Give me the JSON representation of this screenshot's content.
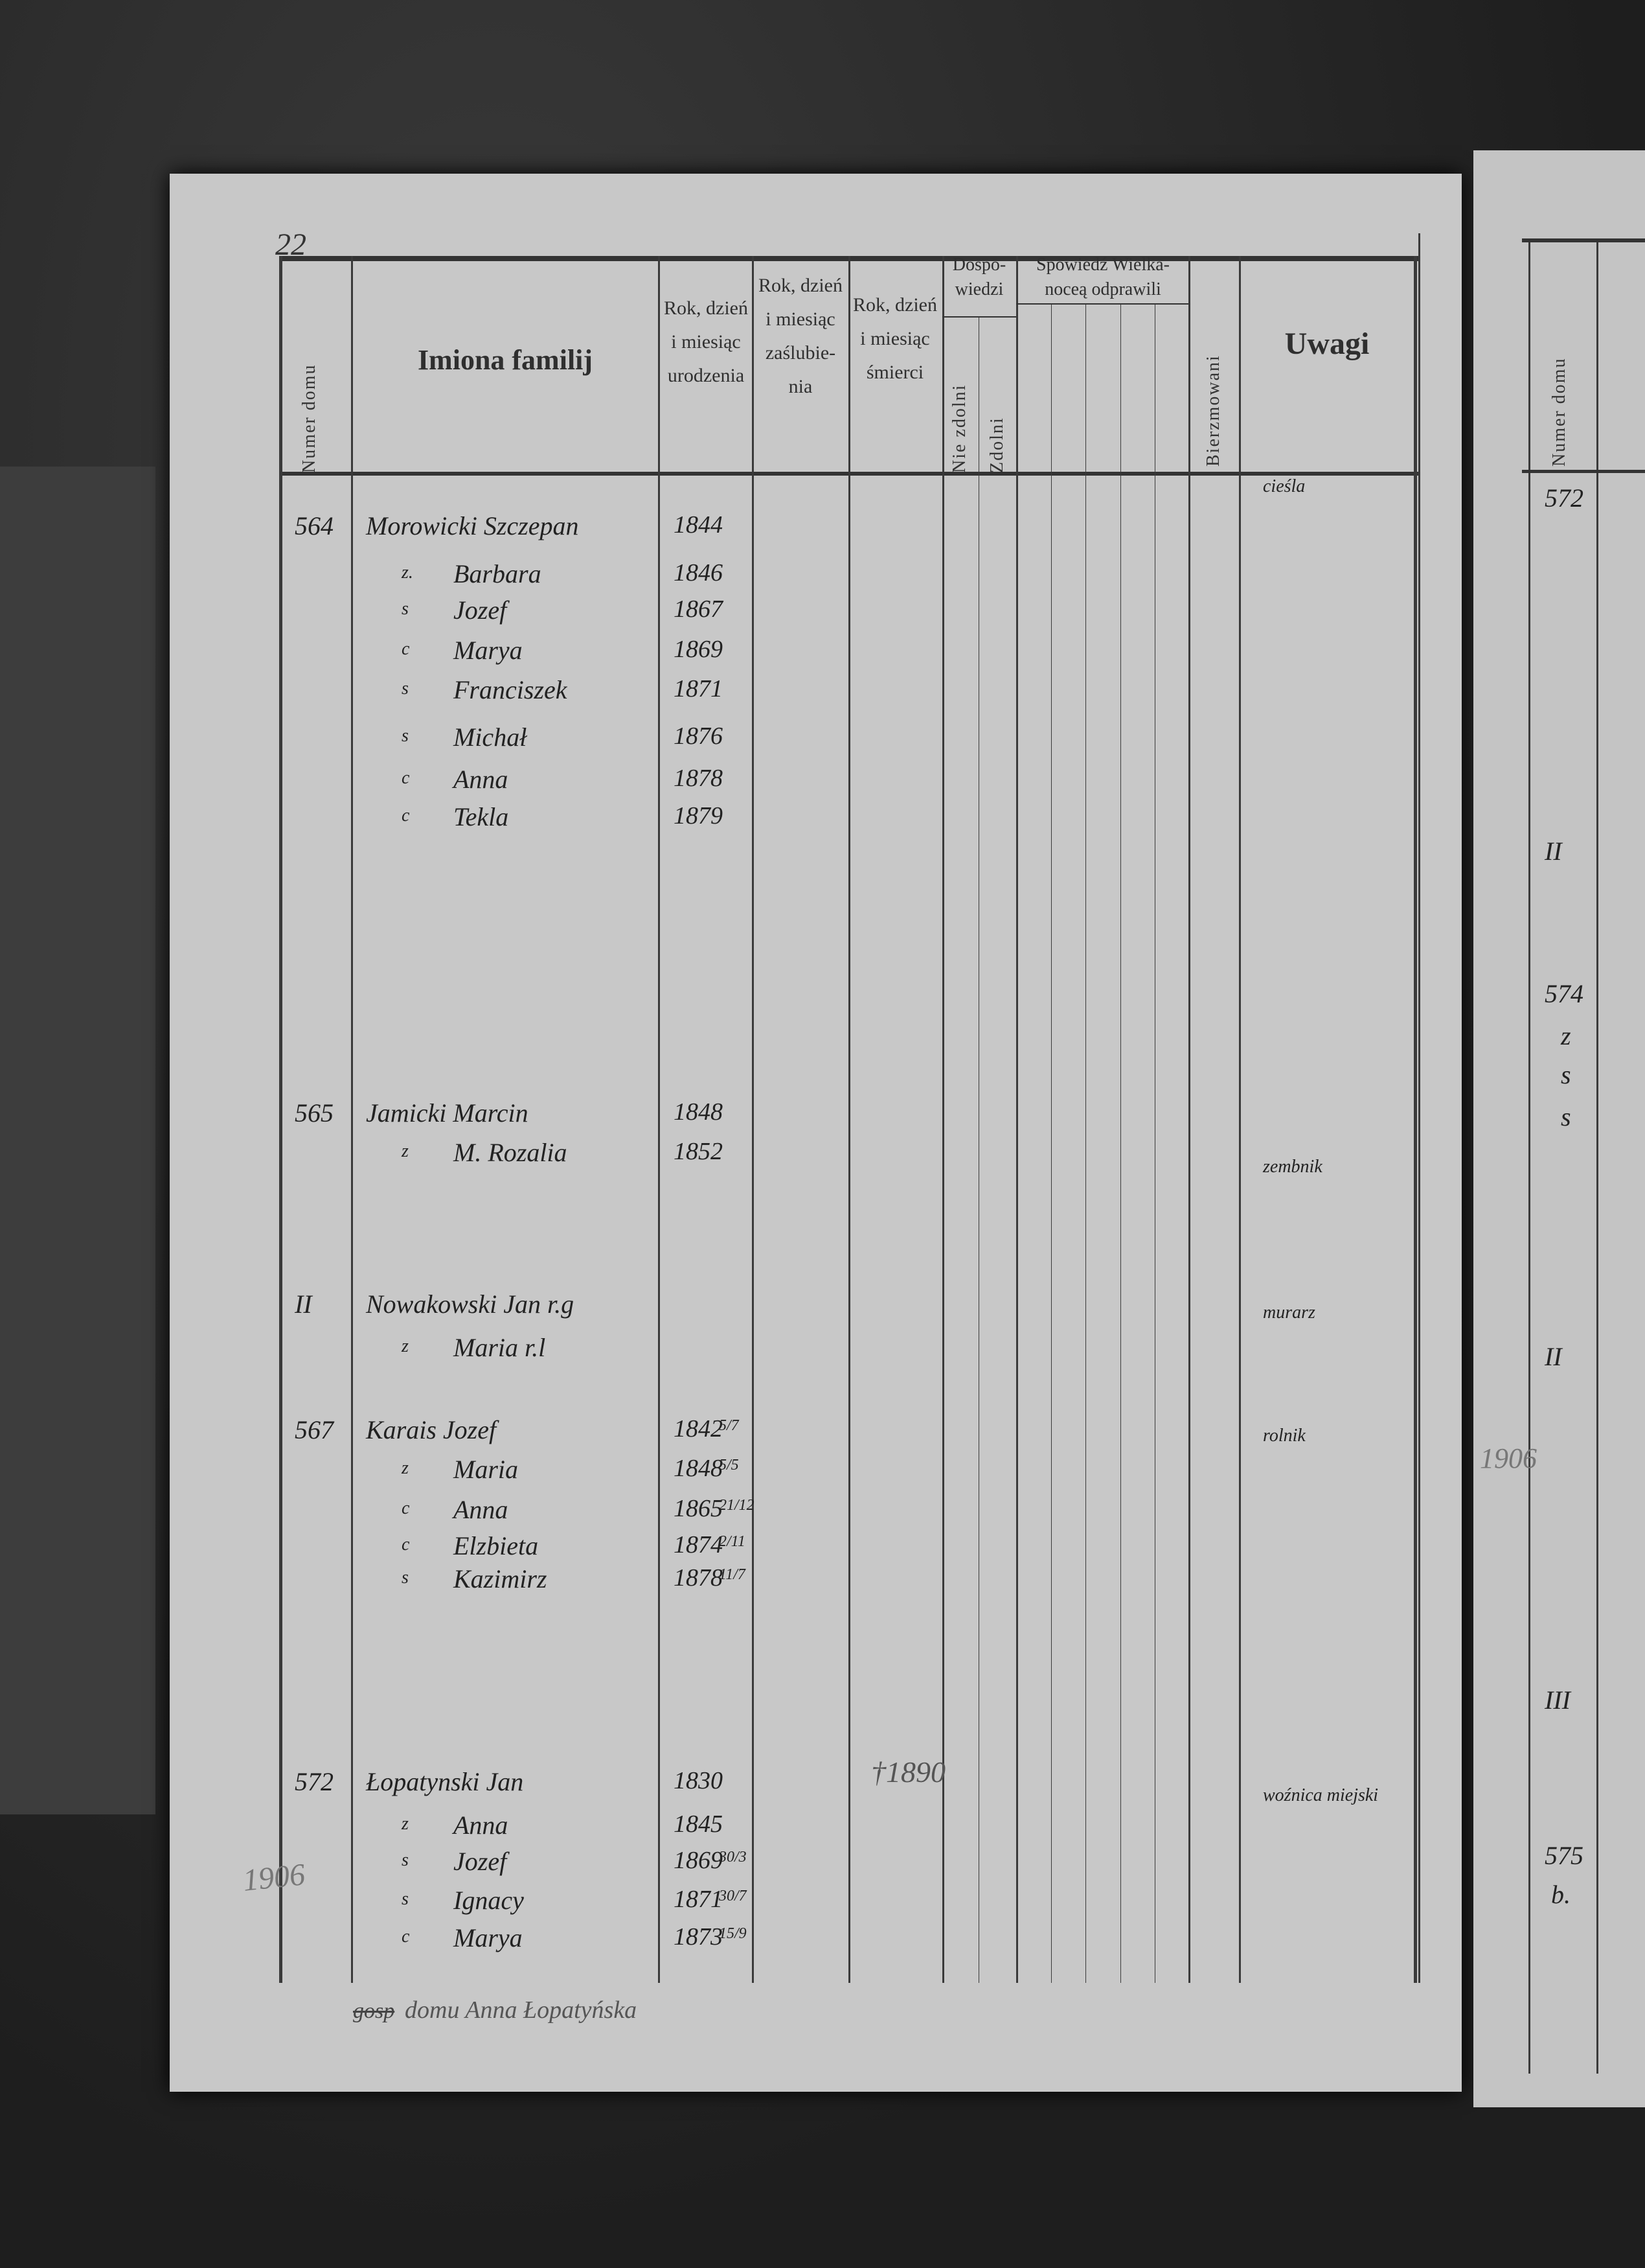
{
  "page_number": "22",
  "header": {
    "numer_domu": "Numer domu",
    "imiona": "Imiona familij",
    "urodzenia": "Rok, dzień i miesiąc urodzenia",
    "zaslubienia": "Rok, dzień i miesiąc zaślubie- nia",
    "smierci": "Rok, dzień i miesiąc śmierci",
    "dospowiedzi": "Dospo- wiedzi",
    "nie_zdolni": "Nie zdolni",
    "zdolni": "Zdolni",
    "spowiedz": "Spowiedź Wielka- noceą odprawili",
    "bierzmowani": "Bierzmowani",
    "uwagi": "Uwagi"
  },
  "households": [
    {
      "number": "564",
      "occupation": "cieśla",
      "death": "",
      "members": [
        {
          "rel": "",
          "name": "Morowicki Szczepan",
          "birth": "1844",
          "date": ""
        },
        {
          "rel": "z.",
          "name": "Barbara",
          "birth": "1846",
          "date": ""
        },
        {
          "rel": "s",
          "name": "Jozef",
          "birth": "1867",
          "date": ""
        },
        {
          "rel": "c",
          "name": "Marya",
          "birth": "1869",
          "date": ""
        },
        {
          "rel": "s",
          "name": "Franciszek",
          "birth": "1871",
          "date": ""
        },
        {
          "rel": "s",
          "name": "Michał",
          "birth": "1876",
          "date": ""
        },
        {
          "rel": "c",
          "name": "Anna",
          "birth": "1878",
          "date": ""
        },
        {
          "rel": "c",
          "name": "Tekla",
          "birth": "1879",
          "date": ""
        }
      ]
    },
    {
      "number": "565",
      "occupation": "zembnik",
      "death": "",
      "members": [
        {
          "rel": "",
          "name": "Jamicki Marcin",
          "birth": "1848",
          "date": ""
        },
        {
          "rel": "z",
          "name": "M. Rozalia",
          "birth": "1852",
          "date": ""
        }
      ]
    },
    {
      "number": "II",
      "occupation": "murarz",
      "death": "",
      "members": [
        {
          "rel": "",
          "name": "Nowakowski Jan r.g",
          "birth": "",
          "date": ""
        },
        {
          "rel": "z",
          "name": "Maria r.l",
          "birth": "",
          "date": ""
        }
      ]
    },
    {
      "number": "567",
      "occupation": "rolnik",
      "death": "",
      "members": [
        {
          "rel": "",
          "name": "Karais Jozef",
          "birth": "1842",
          "date": "5/7"
        },
        {
          "rel": "z",
          "name": "Maria",
          "birth": "1848",
          "date": "5/5"
        },
        {
          "rel": "c",
          "name": "Anna",
          "birth": "1865",
          "date": "21/12"
        },
        {
          "rel": "c",
          "name": "Elzbieta",
          "birth": "1874",
          "date": "2/11"
        },
        {
          "rel": "s",
          "name": "Kazimirz",
          "birth": "1878",
          "date": "11/7"
        }
      ]
    },
    {
      "number": "572",
      "occupation": "woźnica miejski",
      "death": "†1890",
      "members": [
        {
          "rel": "",
          "name": "Łopatynski Jan",
          "birth": "1830",
          "date": ""
        },
        {
          "rel": "z",
          "name": "Anna",
          "birth": "1845",
          "date": ""
        },
        {
          "rel": "s",
          "name": "Jozef",
          "birth": "1869",
          "date": "30/3"
        },
        {
          "rel": "s",
          "name": "Ignacy",
          "birth": "1871",
          "date": "30/7"
        },
        {
          "rel": "c",
          "name": "Marya",
          "birth": "1873",
          "date": "15/9"
        }
      ]
    }
  ],
  "footer_note": {
    "struck": "gosp",
    "text": "domu Anna Łopatyńska"
  },
  "pencil_notes": [
    "1906",
    "1906"
  ],
  "right_page": {
    "header": "Numer domu",
    "numbers": [
      "572",
      "II",
      "574",
      "z",
      "s",
      "s",
      "II",
      "III",
      "575",
      "b."
    ]
  }
}
